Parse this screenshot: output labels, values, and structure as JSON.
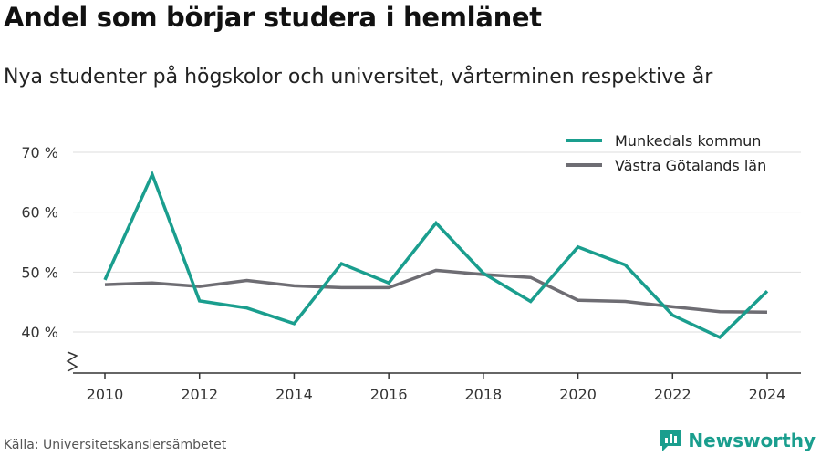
{
  "header": {
    "title": "Andel som börjar studera i hemlänet",
    "subtitle": "Nya studenter på högskolor och universitet, vårterminen respektive år"
  },
  "footer": {
    "source": "Källa: Universitetskanslersämbetet",
    "brand": "Newsworthy"
  },
  "colors": {
    "series_1": "#1a9e8e",
    "series_2": "#6e6d73",
    "grid": "#dddddd",
    "axis": "#333333",
    "brand": "#1a9e8e"
  },
  "chart_data": {
    "type": "line",
    "title": "Andel som börjar studera i hemlänet",
    "subtitle": "Nya studenter på högskolor och universitet, vårterminen respektive år",
    "x": [
      2010,
      2011,
      2012,
      2013,
      2014,
      2015,
      2016,
      2017,
      2018,
      2019,
      2020,
      2021,
      2022,
      2023,
      2024
    ],
    "x_ticks": [
      2010,
      2012,
      2014,
      2016,
      2018,
      2020,
      2022,
      2024
    ],
    "x_tick_labels": [
      "2010",
      "2012",
      "2014",
      "2016",
      "2018",
      "2020",
      "2022",
      "2024"
    ],
    "y_ticks": [
      40,
      50,
      60,
      70
    ],
    "y_tick_labels": [
      "40 %",
      "50 %",
      "60 %",
      "70 %"
    ],
    "ylim": [
      35,
      72
    ],
    "y_axis_break": true,
    "grid": true,
    "legend_position": "top-right",
    "series": [
      {
        "name": "Munkedals kommun",
        "color": "#1a9e8e",
        "values": [
          48.7,
          66.3,
          45.2,
          44.0,
          41.4,
          51.4,
          48.2,
          58.2,
          49.8,
          45.1,
          54.2,
          51.2,
          42.8,
          39.1,
          46.8
        ]
      },
      {
        "name": "Västra Götalands län",
        "color": "#6e6d73",
        "values": [
          47.9,
          48.2,
          47.6,
          48.6,
          47.7,
          47.4,
          47.4,
          50.3,
          49.6,
          49.1,
          45.3,
          45.1,
          44.2,
          43.4,
          43.3
        ]
      }
    ]
  }
}
